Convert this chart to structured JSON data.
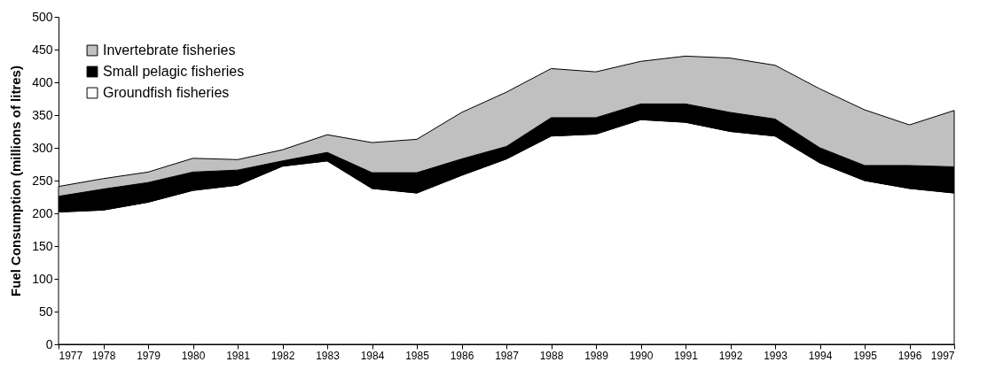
{
  "chart_data": {
    "type": "area",
    "stacked": true,
    "ylabel": "Fuel Consumption (millions of litres)",
    "categories": [
      "1977",
      "1978",
      "1979",
      "1980",
      "1981",
      "1982",
      "1983",
      "1984",
      "1985",
      "1986",
      "1987",
      "1988",
      "1989",
      "1990",
      "1991",
      "1992",
      "1993",
      "1994",
      "1995",
      "1996",
      "1997"
    ],
    "series": [
      {
        "name": "Groundfish fisheries",
        "color": "#ffffff",
        "values": [
          202,
          205,
          217,
          235,
          243,
          272,
          280,
          238,
          231,
          258,
          283,
          318,
          321,
          343,
          339,
          325,
          318,
          277,
          250,
          238,
          231
        ]
      },
      {
        "name": "Small pelagic fisheries",
        "color": "#000000",
        "values": [
          24,
          32,
          30,
          28,
          23,
          8,
          13,
          24,
          31,
          25,
          19,
          28,
          25,
          24,
          28,
          29,
          26,
          23,
          23,
          35,
          40
        ]
      },
      {
        "name": "Invertebrate fisheries",
        "color": "#c0c0c0",
        "values": [
          15,
          16,
          16,
          21,
          16,
          17,
          27,
          46,
          51,
          71,
          83,
          75,
          70,
          65,
          73,
          83,
          82,
          90,
          85,
          62,
          86
        ]
      }
    ],
    "ylim": [
      0,
      500
    ],
    "yticks": [
      0,
      50,
      100,
      150,
      200,
      250,
      300,
      350,
      400,
      450,
      500
    ],
    "grid": false,
    "legend": "top left"
  }
}
